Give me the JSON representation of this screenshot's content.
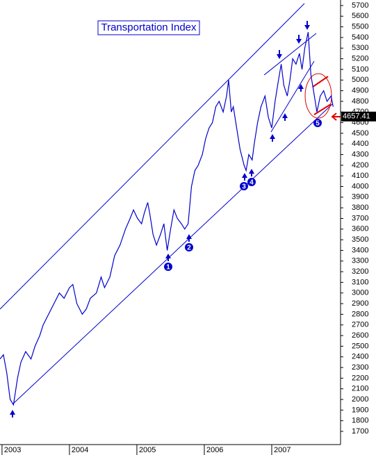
{
  "chart_data": {
    "type": "line",
    "title": "Transportation Index",
    "color": "#0000cc",
    "x": [
      2002.97,
      2003.02,
      2003.07,
      2003.12,
      2003.17,
      2003.23,
      2003.28,
      2003.35,
      2003.43,
      2003.49,
      2003.56,
      2003.61,
      2003.69,
      2003.77,
      2003.85,
      2003.92,
      2004.0,
      2004.05,
      2004.11,
      2004.19,
      2004.25,
      2004.31,
      2004.4,
      2004.47,
      2004.52,
      2004.6,
      2004.67,
      2004.75,
      2004.83,
      2004.9,
      2004.95,
      2005.01,
      2005.07,
      2005.11,
      2005.16,
      2005.19,
      2005.24,
      2005.29,
      2005.35,
      2005.4,
      2005.45,
      2005.5,
      2005.55,
      2005.6,
      2005.66,
      2005.71,
      2005.76,
      2005.81,
      2005.86,
      2005.91,
      2005.97,
      2006.02,
      2006.07,
      2006.12,
      2006.17,
      2006.22,
      2006.28,
      2006.33,
      2006.36,
      2006.4,
      2006.43,
      2006.48,
      2006.53,
      2006.59,
      2006.62,
      2006.66,
      2006.71,
      2006.74,
      2006.79,
      2006.84,
      2006.9,
      2006.95,
      2007.0,
      2007.05,
      2007.1,
      2007.14,
      2007.18,
      2007.23,
      2007.27,
      2007.31,
      2007.36,
      2007.41,
      2007.45,
      2007.49,
      2007.54,
      2007.58,
      2007.62,
      2007.67,
      2007.72,
      2007.77,
      2007.82,
      2007.88,
      2007.91
    ],
    "values": [
      2380,
      2420,
      2250,
      2000,
      1950,
      2200,
      2350,
      2450,
      2380,
      2500,
      2600,
      2700,
      2800,
      2900,
      3000,
      2950,
      3050,
      3080,
      2900,
      2800,
      2850,
      2950,
      3000,
      3150,
      3050,
      3150,
      3350,
      3450,
      3600,
      3700,
      3780,
      3700,
      3650,
      3750,
      3850,
      3750,
      3550,
      3450,
      3550,
      3650,
      3400,
      3600,
      3780,
      3700,
      3650,
      3600,
      3650,
      4000,
      4150,
      4200,
      4300,
      4450,
      4550,
      4600,
      4750,
      4800,
      4700,
      4850,
      5000,
      4700,
      4750,
      4550,
      4350,
      4200,
      4150,
      4300,
      4250,
      4400,
      4600,
      4750,
      4850,
      4650,
      4550,
      4800,
      5000,
      5150,
      4950,
      4850,
      5000,
      5200,
      5150,
      5250,
      5100,
      5300,
      5450,
      5050,
      4900,
      4700,
      4850,
      4900,
      4800,
      4850,
      4750
    ],
    "last_value": 4657.41,
    "xlim": [
      2002.97,
      2008.0
    ],
    "xticks": [
      2003,
      2004,
      2005,
      2006,
      2007
    ],
    "ylim": [
      1576,
      5752
    ],
    "yticks": [
      1700,
      1800,
      1900,
      2000,
      2100,
      2200,
      2300,
      2400,
      2500,
      2600,
      2700,
      2800,
      2900,
      3000,
      3100,
      3200,
      3300,
      3400,
      3500,
      3600,
      3700,
      3800,
      3900,
      4000,
      4100,
      4200,
      4300,
      4400,
      4500,
      4600,
      4700,
      4800,
      4900,
      5000,
      5100,
      5200,
      5300,
      5400,
      5500,
      5600,
      5700
    ],
    "annotations": [
      "1",
      "2",
      "3",
      "4",
      "5"
    ]
  }
}
